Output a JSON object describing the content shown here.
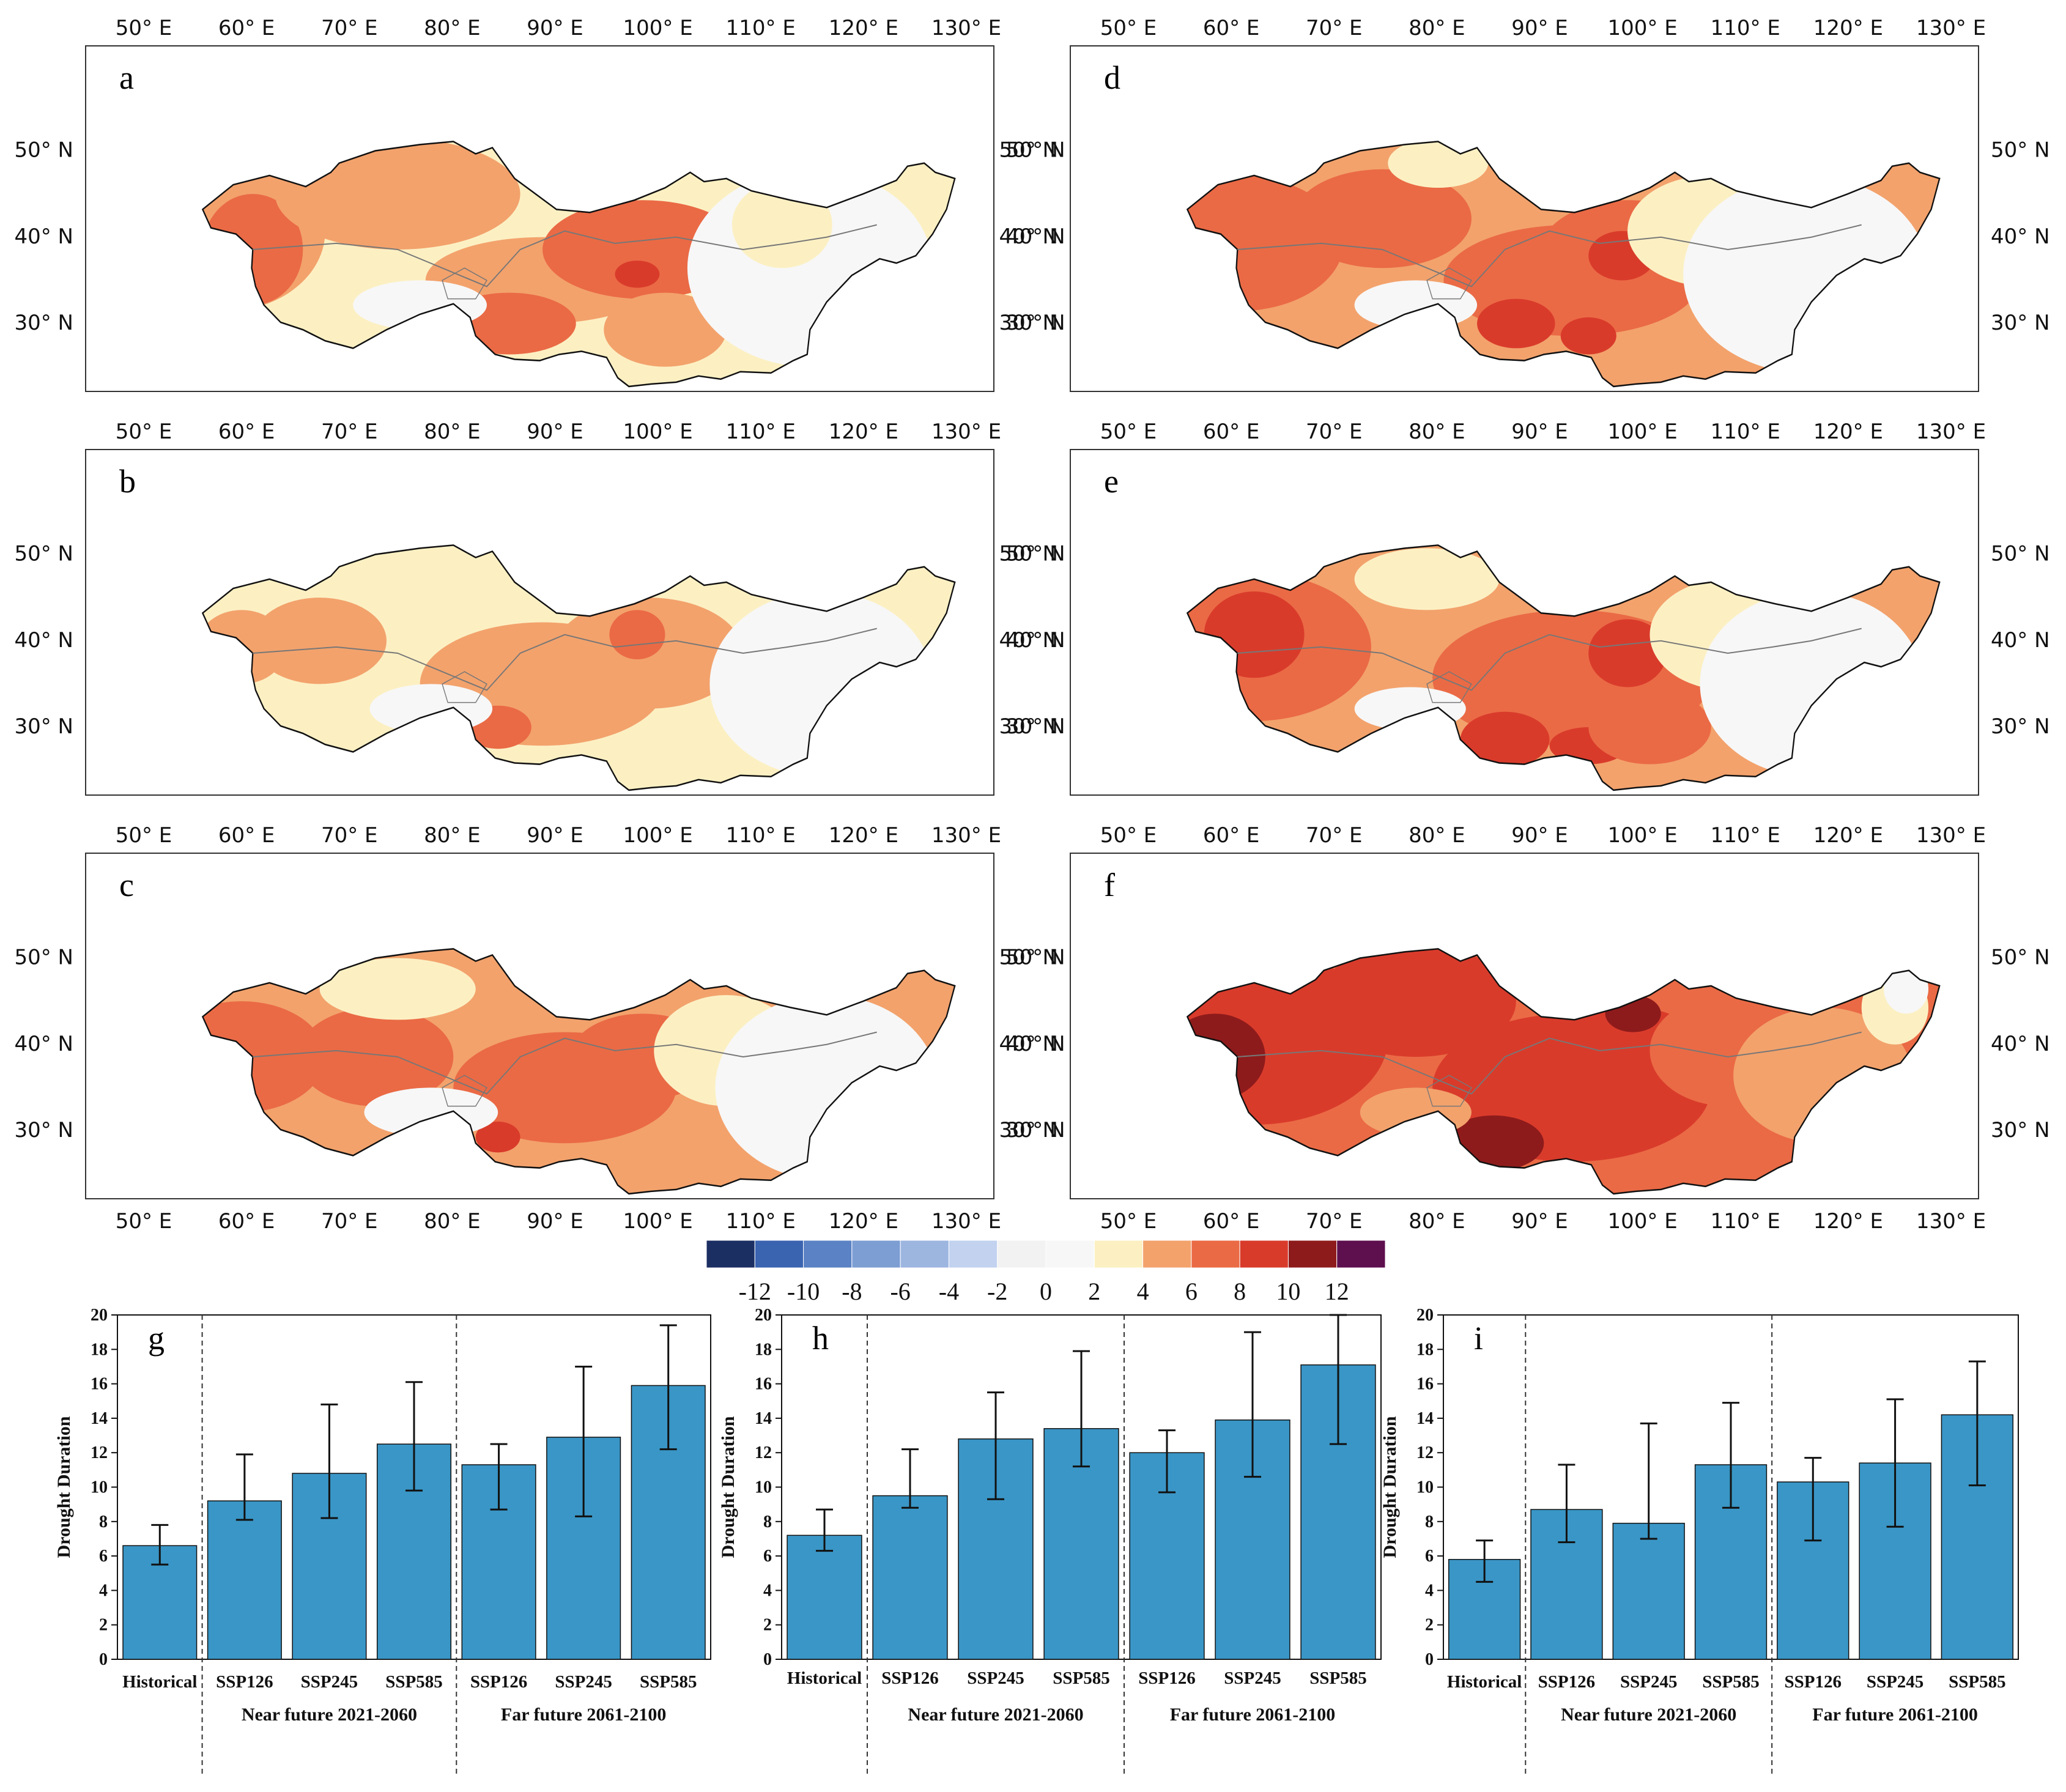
{
  "chart_data": {
    "maps": {
      "type": "heatmap",
      "panels": [
        "a",
        "b",
        "c",
        "d",
        "e",
        "f"
      ],
      "lon_ticks": [
        "50° E",
        "60° E",
        "70° E",
        "80° E",
        "90° E",
        "100° E",
        "110° E",
        "120° E",
        "130° E"
      ],
      "lat_ticks": [
        "50° N",
        "40° N",
        "30° N"
      ],
      "colorbar": {
        "tick_labels": [
          "-12",
          "-10",
          "-8",
          "-6",
          "-4",
          "-2",
          "0",
          "2",
          "4",
          "6",
          "8",
          "10",
          "12"
        ],
        "colors": [
          "#1c2f63",
          "#3a63b0",
          "#5a82c4",
          "#7d9ed3",
          "#9db6e0",
          "#c2d2ef",
          "#f2f2f2",
          "#f7f7f7",
          "#fcf0c3",
          "#f3a26c",
          "#ea6a45",
          "#d93b2b",
          "#8e1b1b",
          "#5e0f4e"
        ]
      }
    },
    "bars": [
      {
        "panel": "g",
        "type": "bar",
        "ylabel": "Drought Duration",
        "ylim": [
          0,
          20
        ],
        "yticks": [
          "0",
          "2",
          "4",
          "6",
          "8",
          "10",
          "12",
          "14",
          "16",
          "18",
          "20"
        ],
        "categories": [
          "Historical",
          "SSP126",
          "SSP245",
          "SSP585",
          "SSP126",
          "SSP245",
          "SSP585"
        ],
        "values": [
          6.6,
          9.2,
          10.8,
          12.5,
          11.3,
          12.9,
          15.9
        ],
        "err_low": [
          5.5,
          8.1,
          8.2,
          9.8,
          8.7,
          8.3,
          12.2
        ],
        "err_high": [
          7.8,
          11.9,
          14.8,
          16.1,
          12.5,
          17.0,
          19.4
        ],
        "groups": [
          "Near future 2021-2060",
          "Far future 2061-2100"
        ],
        "bar_color": "#3a96c6"
      },
      {
        "panel": "h",
        "type": "bar",
        "ylabel": "Drought Duration",
        "ylim": [
          0,
          20
        ],
        "yticks": [
          "0",
          "2",
          "4",
          "6",
          "8",
          "10",
          "12",
          "14",
          "16",
          "18",
          "20"
        ],
        "categories": [
          "Historical",
          "SSP126",
          "SSP245",
          "SSP585",
          "SSP126",
          "SSP245",
          "SSP585"
        ],
        "values": [
          7.2,
          9.5,
          12.8,
          13.4,
          12.0,
          13.9,
          17.1
        ],
        "err_low": [
          6.3,
          8.8,
          9.3,
          11.2,
          9.7,
          10.6,
          12.5
        ],
        "err_high": [
          8.7,
          12.2,
          15.5,
          17.9,
          13.3,
          19.0,
          20.0
        ],
        "groups": [
          "Near future 2021-2060",
          "Far future 2061-2100"
        ],
        "bar_color": "#3a96c6"
      },
      {
        "panel": "i",
        "type": "bar",
        "ylabel": "Drought Duration",
        "ylim": [
          0,
          20
        ],
        "yticks": [
          "0",
          "2",
          "4",
          "6",
          "8",
          "10",
          "12",
          "14",
          "16",
          "18",
          "20"
        ],
        "categories": [
          "Historical",
          "SSP126",
          "SSP245",
          "SSP585",
          "SSP126",
          "SSP245",
          "SSP585"
        ],
        "values": [
          5.8,
          8.7,
          7.9,
          11.3,
          10.3,
          11.4,
          14.2
        ],
        "err_low": [
          4.5,
          6.8,
          7.0,
          8.8,
          6.9,
          7.7,
          10.1
        ],
        "err_high": [
          6.9,
          11.3,
          13.7,
          14.9,
          11.7,
          15.1,
          17.3
        ],
        "groups": [
          "Near future 2021-2060",
          "Far future 2061-2100"
        ],
        "bar_color": "#3a96c6"
      }
    ]
  }
}
